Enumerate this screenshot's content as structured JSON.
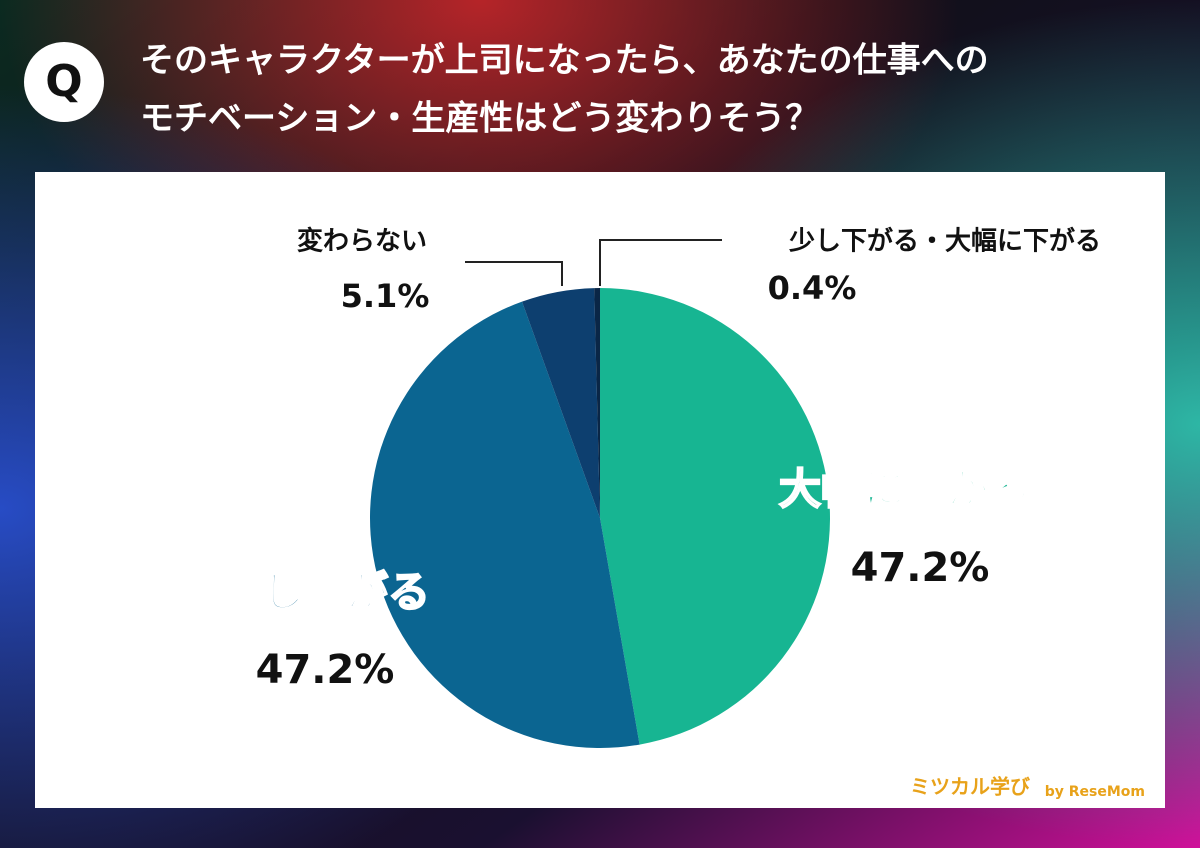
{
  "badge": "Q",
  "chart_data": {
    "type": "pie",
    "title": [
      "そのキャラクターが上司になったら、あなたの仕事への",
      "モチベーション・生産性はどう変わりそう？"
    ],
    "categories": [
      "大幅に上がる",
      "少し上がる",
      "変わらない",
      "少し下がる・大幅に下がる"
    ],
    "values": [
      47.2,
      47.2,
      5.1,
      0.4
    ],
    "value_labels": [
      "47.2%",
      "47.2%",
      "5.1%",
      "0.4%"
    ],
    "colors": [
      "#17b592",
      "#0b6591",
      "#0d3f6f",
      "#0a2646"
    ]
  },
  "logo": {
    "name": "ミツカル学び",
    "by": "by ReseMom"
  }
}
